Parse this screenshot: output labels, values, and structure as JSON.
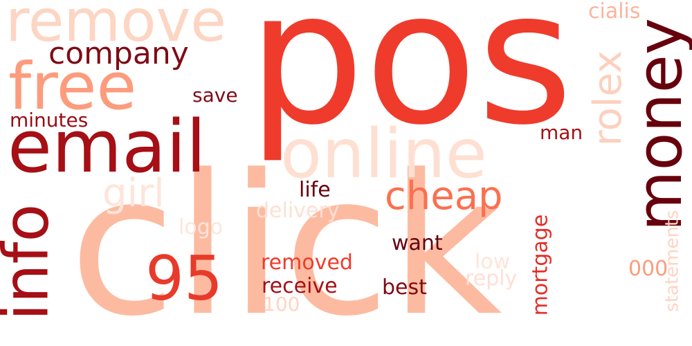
{
  "words": [
    {
      "text": "pos",
      "color": "#ef3b2c"
    },
    {
      "text": "click",
      "color": "#fcbba1"
    },
    {
      "text": "email",
      "color": "#a50f15"
    },
    {
      "text": "online",
      "color": "#fee0d2"
    },
    {
      "text": "remove",
      "color": "#fdd5c3"
    },
    {
      "text": "free",
      "color": "#fc9c7d"
    },
    {
      "text": "money",
      "color": "#67000d"
    },
    {
      "text": "info",
      "color": "#a50f15"
    },
    {
      "text": "95",
      "color": "#e83a2a"
    },
    {
      "text": "company",
      "color": "#7f0a16"
    },
    {
      "text": "cheap",
      "color": "#fb7050"
    },
    {
      "text": "rolex",
      "color": "#fdd0bd"
    },
    {
      "text": "girl",
      "color": "#fee5da"
    },
    {
      "text": "save",
      "color": "#7f0a16"
    },
    {
      "text": "minutes",
      "color": "#990c13"
    },
    {
      "text": "cialis",
      "color": "#fcb49c"
    },
    {
      "text": "man",
      "color": "#a50f15"
    },
    {
      "text": "life",
      "color": "#67000d"
    },
    {
      "text": "delivery",
      "color": "#fde0d4"
    },
    {
      "text": "logo",
      "color": "#fee5da"
    },
    {
      "text": "want",
      "color": "#67000d"
    },
    {
      "text": "mortgage",
      "color": "#e32f27"
    },
    {
      "text": "low",
      "color": "#fee5da"
    },
    {
      "text": "removed",
      "color": "#ef3b2c"
    },
    {
      "text": "reply",
      "color": "#fde0d4"
    },
    {
      "text": "receive",
      "color": "#a50f15"
    },
    {
      "text": "best",
      "color": "#7f0a16"
    },
    {
      "text": "100",
      "color": "#fdd5c3"
    },
    {
      "text": "000",
      "color": "#fc9c7d"
    },
    {
      "text": "statements",
      "color": "#fdd5c3"
    }
  ]
}
